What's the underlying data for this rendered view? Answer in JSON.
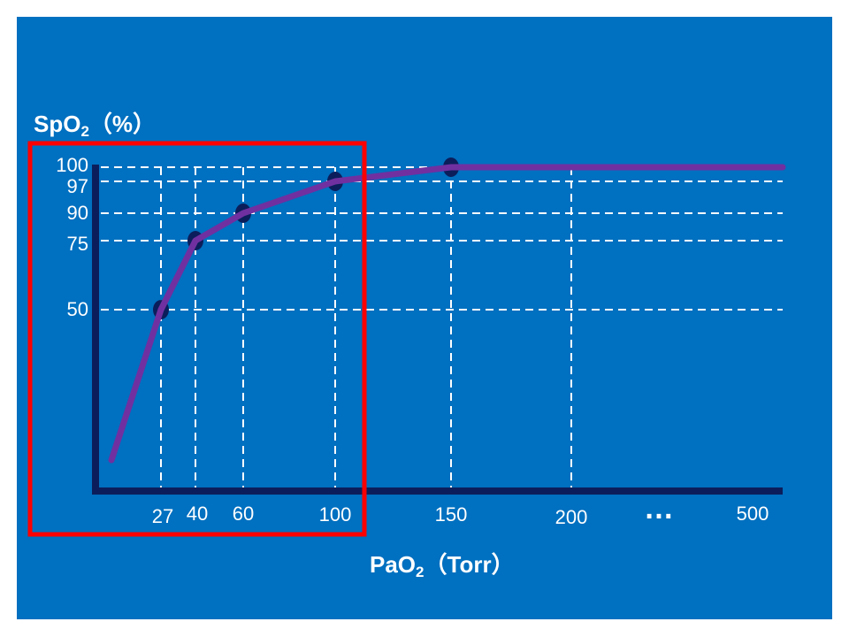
{
  "chart_data": {
    "type": "line",
    "y_title": {
      "main": "SpO",
      "sub": "2",
      "unit": "（%）"
    },
    "x_title": {
      "main": "PaO",
      "sub": "2",
      "unit": "（Torr）"
    },
    "y_ticks": [
      "100",
      "97",
      "90",
      "75",
      "50"
    ],
    "x_ticks": [
      "27",
      "40",
      "60",
      "100",
      "150",
      "200",
      "500"
    ],
    "x_break_label": "…",
    "points": [
      {
        "x": 27,
        "y": 50
      },
      {
        "x": 40,
        "y": 75
      },
      {
        "x": 60,
        "y": 90
      },
      {
        "x": 100,
        "y": 97
      },
      {
        "x": 150,
        "y": 100
      }
    ],
    "curve": [
      {
        "x": 20,
        "y": 13
      },
      {
        "x": 27,
        "y": 50
      },
      {
        "x": 40,
        "y": 75
      },
      {
        "x": 60,
        "y": 90
      },
      {
        "x": 100,
        "y": 97
      },
      {
        "x": 150,
        "y": 100
      },
      {
        "x": 500,
        "y": 100
      }
    ],
    "ylim": [
      0,
      100
    ],
    "grid": "dashed",
    "highlight_range_x": [
      0,
      100
    ],
    "colors": {
      "background": "#0070c0",
      "axis": "#0b1e5b",
      "curve": "#7030a0",
      "points": "#0b1e5b",
      "grid": "#ffffff",
      "highlight": "#ff0000"
    }
  }
}
